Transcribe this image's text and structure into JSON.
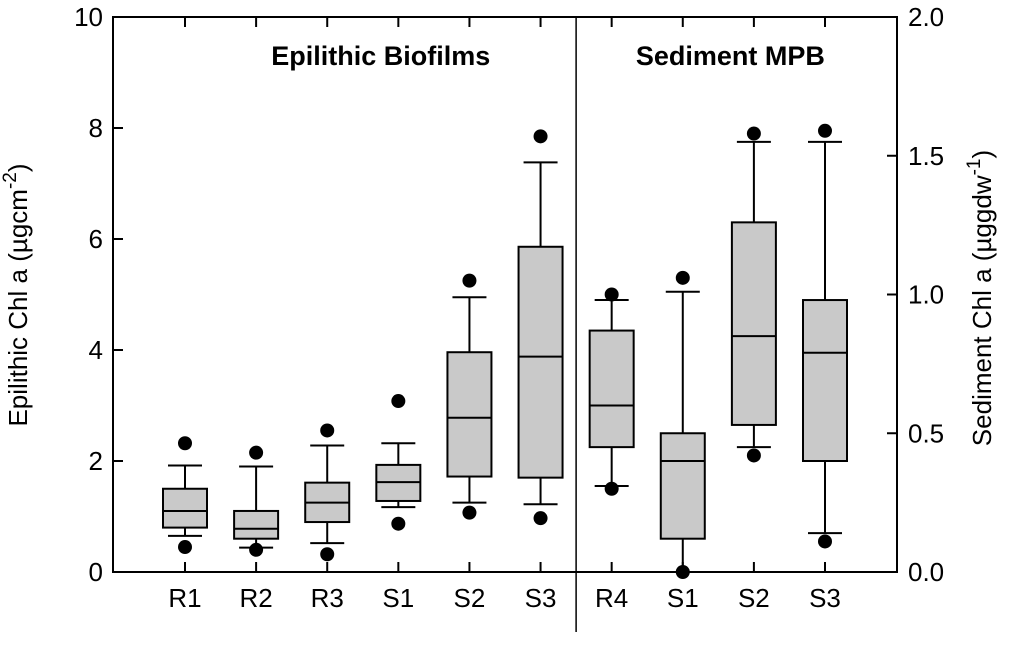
{
  "chart_data": {
    "type": "boxplot",
    "background_color": "#ffffff",
    "box_fill_color": "#c9c9c9",
    "stroke_color": "#000000",
    "left_axis": {
      "label_pre": "Epilithic Chl a (µgcm",
      "label_sup": "-2",
      "label_post": ")",
      "min": 0,
      "max": 10,
      "tick_values": [
        0,
        2,
        4,
        6,
        8,
        10
      ],
      "tick_labels": [
        "0",
        "2",
        "4",
        "6",
        "8",
        "10"
      ]
    },
    "right_axis": {
      "label_pre": "Sediment Chl a (µggdw",
      "label_sup": "-1",
      "label_post": ")",
      "min": 0,
      "max": 2,
      "tick_values": [
        0,
        0.5,
        1,
        1.5,
        2
      ],
      "tick_labels": [
        "0.0",
        "0.5",
        "1.0",
        "1.5",
        "2.0"
      ]
    },
    "panels": [
      {
        "title": "Epilithic Biofilms",
        "axis": "left",
        "boxes": [
          {
            "label": "R1",
            "low_outlier": 0.45,
            "whisker_low": 0.65,
            "q1": 0.8,
            "median": 1.1,
            "q3": 1.5,
            "whisker_high": 1.92,
            "high_outlier": 2.32
          },
          {
            "label": "R2",
            "low_outlier": 0.4,
            "whisker_low": 0.44,
            "q1": 0.6,
            "median": 0.78,
            "q3": 1.1,
            "whisker_high": 1.9,
            "high_outlier": 2.15
          },
          {
            "label": "R3",
            "low_outlier": 0.32,
            "whisker_low": 0.52,
            "q1": 0.9,
            "median": 1.25,
            "q3": 1.61,
            "whisker_high": 2.28,
            "high_outlier": 2.55
          },
          {
            "label": "S1",
            "low_outlier": 0.87,
            "whisker_low": 1.17,
            "q1": 1.28,
            "median": 1.62,
            "q3": 1.93,
            "whisker_high": 2.32,
            "high_outlier": 3.08
          },
          {
            "label": "S2",
            "low_outlier": 1.07,
            "whisker_low": 1.25,
            "q1": 1.72,
            "median": 2.78,
            "q3": 3.96,
            "whisker_high": 4.95,
            "high_outlier": 5.25
          },
          {
            "label": "S3",
            "low_outlier": 0.97,
            "whisker_low": 1.22,
            "q1": 1.7,
            "median": 3.88,
            "q3": 5.86,
            "whisker_high": 7.38,
            "high_outlier": 7.85
          }
        ]
      },
      {
        "title": "Sediment MPB",
        "axis": "right",
        "boxes": [
          {
            "label": "R4",
            "low_outlier": 0.3,
            "whisker_low": 0.31,
            "q1": 0.45,
            "median": 0.6,
            "q3": 0.87,
            "whisker_high": 0.98,
            "high_outlier": 1.0
          },
          {
            "label": "S1",
            "low_outlier": 0.0,
            "whisker_low": 0.0,
            "q1": 0.12,
            "median": 0.4,
            "q3": 0.5,
            "whisker_high": 1.01,
            "high_outlier": 1.06
          },
          {
            "label": "S2",
            "low_outlier": 0.42,
            "whisker_low": 0.45,
            "q1": 0.53,
            "median": 0.85,
            "q3": 1.26,
            "whisker_high": 1.55,
            "high_outlier": 1.58
          },
          {
            "label": "S3",
            "low_outlier": 0.11,
            "whisker_low": 0.14,
            "q1": 0.4,
            "median": 0.79,
            "q3": 0.98,
            "whisker_high": 1.55,
            "high_outlier": 1.59
          }
        ]
      }
    ]
  }
}
